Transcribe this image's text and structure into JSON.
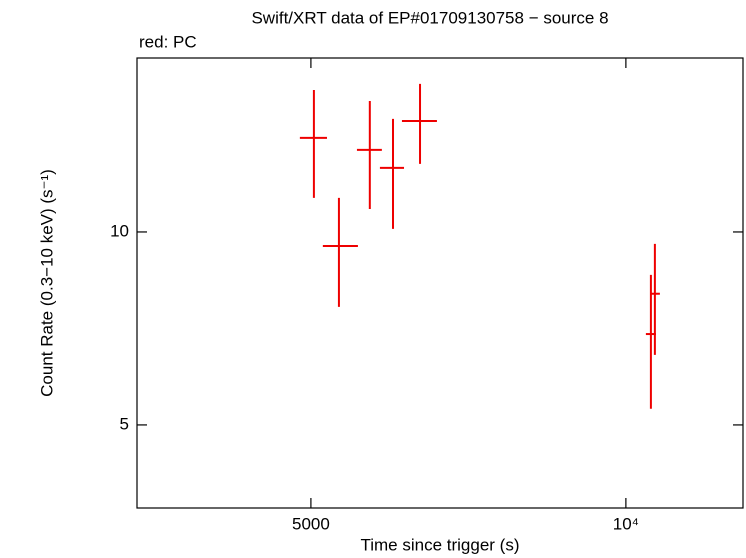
{
  "chart_data": {
    "type": "errorbar",
    "title": "Swift/XRT data of EP#01709130758 − source 8",
    "subtitle": "red: PC",
    "x_label": "Time since trigger (s)",
    "y_label": "Count Rate (0.3−10 keV) (s⁻¹)",
    "x_log": true,
    "y_log": true,
    "xlim": [
      3410,
      12940
    ],
    "ylim": [
      3.71,
      18.68
    ],
    "xticks": [
      5000,
      {
        "value": 10000,
        "label": "10⁴"
      }
    ],
    "yticks": [
      5,
      10
    ],
    "series": [
      {
        "color": "#ee0000",
        "x": [
          5033,
          5318,
          5692,
          5990,
          6357,
          10566,
          10659
        ],
        "x_minus": [
          153,
          185,
          159,
          170,
          248,
          116,
          93
        ],
        "x_plus": [
          147,
          227,
          153,
          147,
          241,
          117,
          118
        ],
        "y": [
          14.02,
          9.51,
          13.43,
          12.59,
          14.9,
          6.93,
          8.01
        ],
        "y_minus": [
          2.72,
          1.87,
          2.57,
          2.48,
          2.13,
          1.63,
          1.58
        ],
        "y_plus": [
          2.63,
          1.79,
          2.58,
          2.42,
          2.12,
          1.64,
          1.57
        ]
      }
    ]
  }
}
